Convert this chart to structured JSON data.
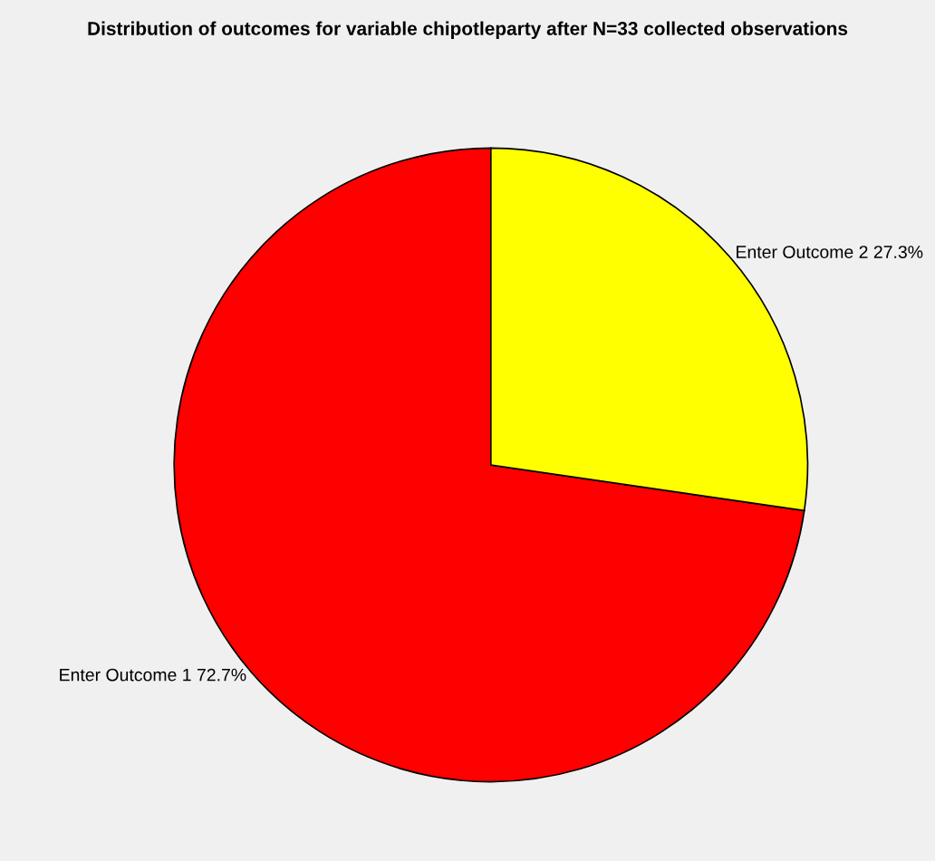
{
  "chart_data": {
    "type": "pie",
    "title": "Distribution of outcomes for variable chipotleparty after N=33 collected observations",
    "categories": [
      "Enter Outcome 1 72.7%",
      "Enter Outcome 2 27.3%"
    ],
    "values": [
      72.7,
      27.3
    ],
    "colors": [
      "#ff0000",
      "#ffff00"
    ]
  }
}
